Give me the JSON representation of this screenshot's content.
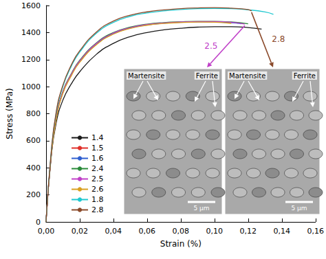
{
  "chart_data": {
    "type": "line",
    "x_label": "Strain (%)",
    "y_label": "Stress (MPa)",
    "xlim": [
      0,
      0.16
    ],
    "xticks": [
      {
        "value": 0,
        "label": "0,00"
      },
      {
        "value": 0.02,
        "label": "0,02"
      },
      {
        "value": 0.04,
        "label": "0,04"
      },
      {
        "value": 0.06,
        "label": "0,06"
      },
      {
        "value": 0.08,
        "label": "0,08"
      },
      {
        "value": 0.1,
        "label": "0,10"
      },
      {
        "value": 0.12,
        "label": "0,12"
      },
      {
        "value": 0.14,
        "label": "0,14"
      },
      {
        "value": 0.16,
        "label": "0,16"
      }
    ],
    "ylim": [
      0,
      1600
    ],
    "yticks": [
      0,
      200,
      400,
      600,
      800,
      1000,
      1200,
      1400,
      1600
    ],
    "grid": false,
    "legend": "left",
    "series": [
      {
        "name": "1.4",
        "color": "#1a1a1a",
        "x": [
          0,
          0.003,
          0.006,
          0.01,
          0.015,
          0.02,
          0.03,
          0.04,
          0.05,
          0.06,
          0.07,
          0.08,
          0.09,
          0.1,
          0.11,
          0.12,
          0.128
        ],
        "values": [
          0,
          470,
          730,
          900,
          1020,
          1110,
          1240,
          1320,
          1370,
          1400,
          1420,
          1432,
          1440,
          1443,
          1443,
          1437,
          1425
        ]
      },
      {
        "name": "1.5",
        "color": "#e0302a",
        "x": [
          0,
          0.003,
          0.006,
          0.01,
          0.015,
          0.02,
          0.03,
          0.04,
          0.05,
          0.06,
          0.07,
          0.08,
          0.09,
          0.1,
          0.11,
          0.114
        ],
        "values": [
          0,
          480,
          760,
          960,
          1090,
          1190,
          1320,
          1395,
          1435,
          1458,
          1470,
          1477,
          1480,
          1480,
          1475,
          1470
        ]
      },
      {
        "name": "1.6",
        "color": "#2f5fd0",
        "x": [
          0,
          0.003,
          0.006,
          0.01,
          0.015,
          0.02,
          0.03,
          0.04,
          0.05,
          0.06,
          0.07,
          0.08,
          0.09,
          0.1,
          0.11,
          0.116
        ],
        "values": [
          0,
          480,
          760,
          955,
          1085,
          1185,
          1315,
          1392,
          1433,
          1456,
          1469,
          1476,
          1479,
          1478,
          1472,
          1465
        ]
      },
      {
        "name": "2.4",
        "color": "#2a8a3a",
        "x": [
          0,
          0.003,
          0.006,
          0.01,
          0.015,
          0.02,
          0.03,
          0.04,
          0.05,
          0.06,
          0.07,
          0.08,
          0.09,
          0.1,
          0.11,
          0.12
        ],
        "values": [
          0,
          485,
          770,
          965,
          1095,
          1195,
          1325,
          1400,
          1440,
          1462,
          1474,
          1480,
          1483,
          1483,
          1478,
          1465
        ]
      },
      {
        "name": "2.5",
        "color": "#c040c8",
        "x": [
          0,
          0.003,
          0.006,
          0.01,
          0.015,
          0.02,
          0.03,
          0.04,
          0.05,
          0.06,
          0.07,
          0.08,
          0.09,
          0.1,
          0.11,
          0.118
        ],
        "values": [
          0,
          480,
          765,
          960,
          1090,
          1190,
          1320,
          1396,
          1436,
          1459,
          1471,
          1478,
          1481,
          1481,
          1476,
          1462
        ]
      },
      {
        "name": "2.6",
        "color": "#d9a020",
        "x": [
          0,
          0.003,
          0.006,
          0.01,
          0.015,
          0.02,
          0.03,
          0.04,
          0.05,
          0.06,
          0.07,
          0.08,
          0.09,
          0.1,
          0.11
        ],
        "values": [
          0,
          475,
          755,
          950,
          1080,
          1180,
          1310,
          1388,
          1430,
          1454,
          1467,
          1474,
          1477,
          1476,
          1468
        ]
      },
      {
        "name": "1.8",
        "color": "#20c8d0",
        "x": [
          0,
          0.003,
          0.006,
          0.01,
          0.015,
          0.02,
          0.03,
          0.04,
          0.05,
          0.06,
          0.07,
          0.08,
          0.09,
          0.1,
          0.11,
          0.12,
          0.13,
          0.135
        ],
        "values": [
          0,
          500,
          800,
          1000,
          1150,
          1255,
          1395,
          1475,
          1520,
          1545,
          1560,
          1570,
          1576,
          1578,
          1576,
          1568,
          1552,
          1535
        ]
      },
      {
        "name": "2.8",
        "color": "#8b4a2b",
        "x": [
          0,
          0.003,
          0.006,
          0.01,
          0.015,
          0.02,
          0.03,
          0.04,
          0.05,
          0.06,
          0.07,
          0.08,
          0.09,
          0.1,
          0.11,
          0.12,
          0.122
        ],
        "values": [
          0,
          505,
          810,
          1010,
          1160,
          1265,
          1405,
          1485,
          1528,
          1553,
          1568,
          1577,
          1582,
          1584,
          1580,
          1570,
          1560
        ]
      }
    ],
    "annotations": [
      {
        "text": "2.5",
        "series": "2.5"
      },
      {
        "text": "2.8",
        "series": "2.8"
      }
    ],
    "insets": [
      {
        "series": "2.5",
        "labels": [
          "Martensite",
          "Ferrite"
        ],
        "scale_bar": "5 µm"
      },
      {
        "series": "2.8",
        "labels": [
          "Martensite",
          "Ferrite"
        ],
        "scale_bar": "5 µm"
      }
    ]
  }
}
